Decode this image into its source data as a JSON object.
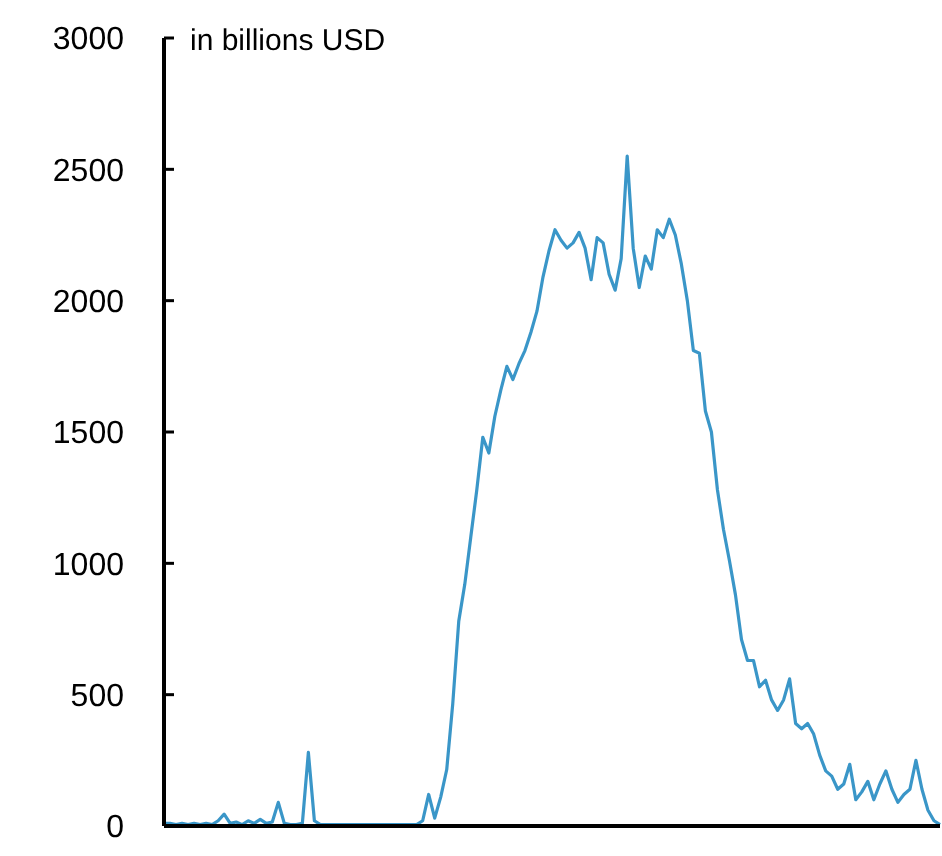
{
  "chart_data": {
    "type": "line",
    "annotations": [
      "in billions USD"
    ],
    "categories": [
      null,
      null,
      null,
      null,
      null,
      null,
      null,
      null,
      null,
      null,
      null,
      null,
      null,
      null,
      null,
      null,
      null,
      null,
      null,
      null,
      null,
      null,
      null,
      null,
      null,
      null,
      null,
      null,
      null,
      null,
      null,
      null,
      null,
      null,
      null,
      null,
      null,
      null,
      null,
      null,
      null,
      null,
      null,
      null,
      null,
      null,
      null,
      null,
      null,
      null,
      null,
      null,
      null,
      null,
      null,
      null,
      null,
      null,
      null,
      null,
      null,
      null,
      null,
      null,
      null,
      null,
      null,
      null,
      null,
      null,
      null,
      null,
      null,
      null,
      null,
      null,
      null,
      null,
      null,
      null,
      null,
      null,
      null,
      null,
      null,
      null,
      null,
      null,
      null,
      null,
      null,
      null,
      null,
      null,
      null,
      null,
      null,
      null,
      null,
      null,
      null,
      null,
      null,
      null,
      null,
      null,
      null,
      null,
      null,
      null,
      null,
      null,
      null,
      null,
      null,
      null,
      null,
      null,
      null,
      null,
      null,
      null,
      null,
      null,
      null,
      null,
      null,
      null,
      null,
      null
    ],
    "series": [
      {
        "color": "#3a96c8",
        "values": [
          10,
          10,
          5,
          10,
          5,
          10,
          5,
          10,
          5,
          20,
          45,
          10,
          15,
          5,
          20,
          10,
          25,
          10,
          15,
          90,
          10,
          5,
          5,
          10,
          280,
          20,
          5,
          5,
          5,
          5,
          5,
          5,
          5,
          5,
          5,
          5,
          5,
          5,
          5,
          5,
          5,
          5,
          5,
          20,
          120,
          30,
          110,
          215,
          465,
          780,
          920,
          1100,
          1280,
          1480,
          1420,
          1560,
          1660,
          1750,
          1700,
          1760,
          1810,
          1880,
          1960,
          2090,
          2190,
          2270,
          2230,
          2200,
          2220,
          2260,
          2200,
          2080,
          2240,
          2220,
          2100,
          2040,
          2160,
          2550,
          2200,
          2050,
          2170,
          2120,
          2270,
          2240,
          2310,
          2250,
          2140,
          2000,
          1810,
          1800,
          1580,
          1500,
          1280,
          1130,
          1010,
          880,
          710,
          630,
          630,
          530,
          555,
          480,
          440,
          480,
          560,
          390,
          370,
          390,
          350,
          270,
          210,
          190,
          140,
          160,
          235,
          100,
          130,
          170,
          100,
          160,
          210,
          140,
          90,
          120,
          140,
          250,
          140,
          60,
          20,
          5
        ]
      }
    ],
    "ylim": [
      0,
      3000
    ],
    "yticks": [
      0,
      500,
      1000,
      1500,
      2000,
      2500,
      3000
    ]
  }
}
